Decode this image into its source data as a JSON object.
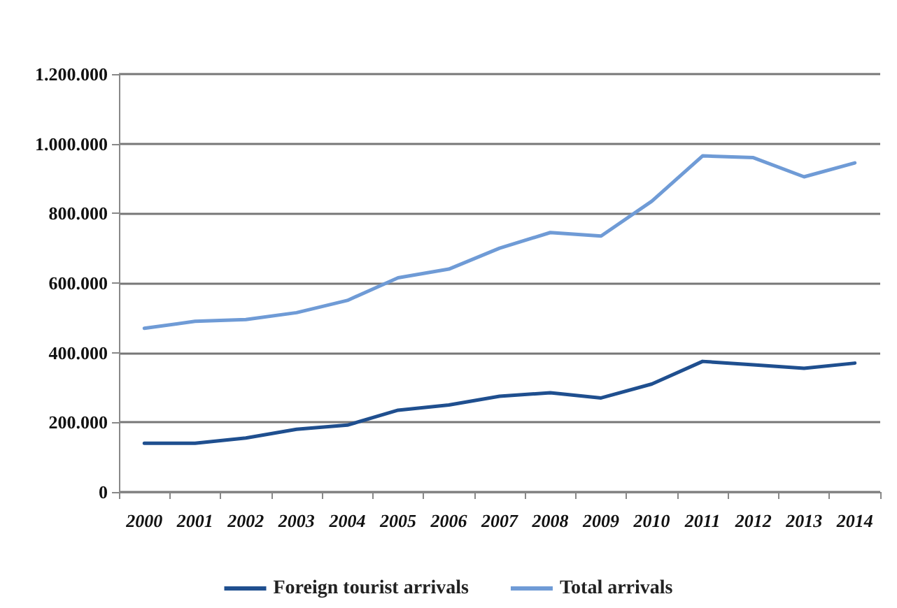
{
  "chart_data": {
    "type": "line",
    "categories": [
      "2000",
      "2001",
      "2002",
      "2003",
      "2004",
      "2005",
      "2006",
      "2007",
      "2008",
      "2009",
      "2010",
      "2011",
      "2012",
      "2013",
      "2014"
    ],
    "series": [
      {
        "name": "Foreign tourist arrivals",
        "color": "#1f4f8f",
        "values": [
          140000,
          140000,
          155000,
          180000,
          192000,
          235000,
          250000,
          275000,
          285000,
          270000,
          310000,
          375000,
          365000,
          355000,
          370000
        ]
      },
      {
        "name": "Total arrivals",
        "color": "#6f9bd6",
        "values": [
          470000,
          490000,
          495000,
          515000,
          550000,
          615000,
          640000,
          700000,
          745000,
          735000,
          835000,
          965000,
          960000,
          905000,
          945000
        ]
      }
    ],
    "ylim": [
      0,
      1200000
    ],
    "yticks": [
      {
        "value": 0,
        "label": "0"
      },
      {
        "value": 200000,
        "label": "200.000"
      },
      {
        "value": 400000,
        "label": "400.000"
      },
      {
        "value": 600000,
        "label": "600.000"
      },
      {
        "value": 800000,
        "label": "800.000"
      },
      {
        "value": 1000000,
        "label": "1.000.000"
      },
      {
        "value": 1200000,
        "label": "1.200.000"
      }
    ],
    "grid": "y",
    "legend": "bottom",
    "marker": "none",
    "line_style": "solid"
  }
}
